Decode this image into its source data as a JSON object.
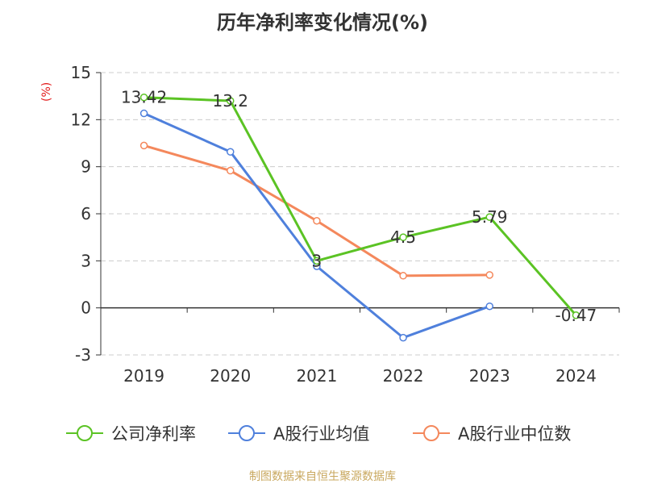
{
  "title": "历年净利率变化情况(%)",
  "unit_label": "(%)",
  "source": "制图数据来自恒生聚源数据库",
  "colors": {
    "company": "#5bc324",
    "avg": "#4f80dc",
    "median": "#f4885c",
    "axis": "#333333",
    "grid": "#cccccc",
    "unit": "#e31c1c",
    "source": "#c9a85f"
  },
  "chart_data": {
    "type": "line",
    "title": "历年净利率变化情况(%)",
    "xlabel": "",
    "ylabel": "(%)",
    "categories": [
      "2019",
      "2020",
      "2021",
      "2022",
      "2023",
      "2024"
    ],
    "ylim": [
      -3,
      15
    ],
    "yticks": [
      -3,
      0,
      3,
      6,
      9,
      12,
      15
    ],
    "ytick_labels": [
      "-3",
      "0",
      "3",
      "6",
      "9",
      "12",
      "15"
    ],
    "grid": true,
    "legend_position": "bottom",
    "series": [
      {
        "name": "公司净利率",
        "color_key": "company",
        "values": [
          13.42,
          13.2,
          3,
          4.5,
          5.79,
          -0.47
        ],
        "labels": [
          "13.42",
          "13.2",
          "3",
          "4.5",
          "5.79",
          "-0.47"
        ]
      },
      {
        "name": "A股行业均值",
        "color_key": "avg",
        "values": [
          12.4,
          9.95,
          2.65,
          -1.9,
          0.1,
          null
        ],
        "labels": null
      },
      {
        "name": "A股行业中位数",
        "color_key": "median",
        "values": [
          10.35,
          8.75,
          5.55,
          2.05,
          2.1,
          null
        ],
        "labels": null
      }
    ]
  }
}
